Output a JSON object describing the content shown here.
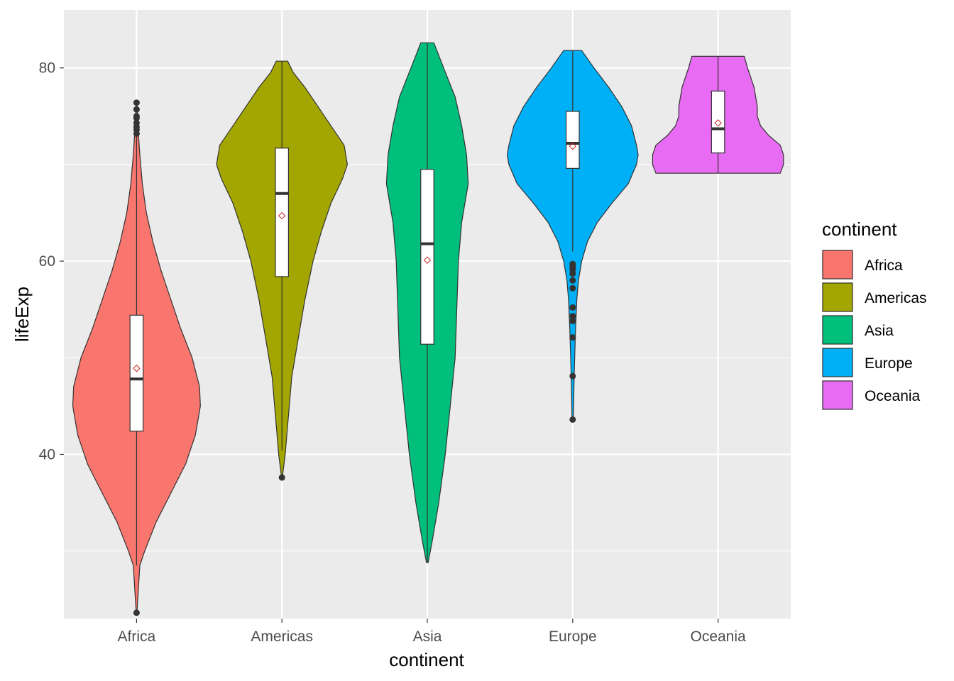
{
  "chart_data": {
    "type": "violin",
    "title": "",
    "xlabel": "continent",
    "ylabel": "lifeExp",
    "ylim": [
      23,
      86
    ],
    "yticks": [
      40,
      60,
      80
    ],
    "grid": true,
    "legend": {
      "title": "continent",
      "placement": "right"
    },
    "categories": [
      "Africa",
      "Americas",
      "Asia",
      "Europe",
      "Oceania"
    ],
    "colors": [
      "#F8766D",
      "#A3A500",
      "#00BF7D",
      "#00B0F6",
      "#E76BF3"
    ],
    "box": [
      {
        "q1": 42.4,
        "median": 47.8,
        "q3": 54.4,
        "mean": 48.9,
        "whisker_low": 28.5,
        "whisker_high": 73.0,
        "outliers": [
          73.2,
          73.6,
          73.9,
          74.3,
          74.8,
          75.0,
          75.7,
          76.4,
          23.6
        ]
      },
      {
        "q1": 58.4,
        "median": 67.0,
        "q3": 71.7,
        "mean": 64.7,
        "whisker_low": 40.4,
        "whisker_high": 80.7,
        "outliers": [
          37.6
        ]
      },
      {
        "q1": 51.4,
        "median": 61.8,
        "q3": 69.5,
        "mean": 60.1,
        "whisker_low": 28.8,
        "whisker_high": 82.6,
        "outliers": []
      },
      {
        "q1": 69.6,
        "median": 72.2,
        "q3": 75.5,
        "mean": 71.9,
        "whisker_low": 61.0,
        "whisker_high": 81.8,
        "outliers": [
          59.1,
          59.3,
          59.5,
          59.7,
          58.7,
          58.0,
          57.2,
          55.2,
          54.3,
          53.8,
          52.1,
          48.1,
          43.6
        ]
      },
      {
        "q1": 71.2,
        "median": 73.7,
        "q3": 77.6,
        "mean": 74.3,
        "whisker_low": 69.1,
        "whisker_high": 81.2,
        "outliers": []
      }
    ],
    "violins": [
      {
        "ymin": 23.6,
        "ymax": 76.4,
        "profile": [
          [
            23.6,
            0.002
          ],
          [
            28.5,
            0.02
          ],
          [
            30,
            0.05
          ],
          [
            33,
            0.12
          ],
          [
            36,
            0.21
          ],
          [
            39,
            0.3
          ],
          [
            42,
            0.36
          ],
          [
            45,
            0.39
          ],
          [
            47,
            0.385
          ],
          [
            50,
            0.34
          ],
          [
            53,
            0.27
          ],
          [
            56,
            0.21
          ],
          [
            59,
            0.15
          ],
          [
            62,
            0.1
          ],
          [
            65,
            0.06
          ],
          [
            68,
            0.035
          ],
          [
            71,
            0.02
          ],
          [
            73,
            0.012
          ],
          [
            75,
            0.006
          ],
          [
            76.4,
            0.002
          ]
        ]
      },
      {
        "ymin": 37.6,
        "ymax": 80.7,
        "profile": [
          [
            37.6,
            0.002
          ],
          [
            40,
            0.02
          ],
          [
            44,
            0.04
          ],
          [
            48,
            0.06
          ],
          [
            52,
            0.1
          ],
          [
            56,
            0.14
          ],
          [
            60,
            0.19
          ],
          [
            63,
            0.24
          ],
          [
            66,
            0.3
          ],
          [
            68.5,
            0.37
          ],
          [
            70,
            0.4
          ],
          [
            72,
            0.38
          ],
          [
            74,
            0.3
          ],
          [
            76,
            0.22
          ],
          [
            78,
            0.14
          ],
          [
            79.5,
            0.07
          ],
          [
            80.7,
            0.035
          ]
        ]
      },
      {
        "ymin": 28.8,
        "ymax": 82.6,
        "profile": [
          [
            28.8,
            0.005
          ],
          [
            31,
            0.03
          ],
          [
            35,
            0.07
          ],
          [
            40,
            0.11
          ],
          [
            45,
            0.14
          ],
          [
            50,
            0.17
          ],
          [
            55,
            0.18
          ],
          [
            60,
            0.19
          ],
          [
            64,
            0.21
          ],
          [
            68,
            0.25
          ],
          [
            71,
            0.24
          ],
          [
            74,
            0.21
          ],
          [
            77,
            0.17
          ],
          [
            80,
            0.1
          ],
          [
            82.6,
            0.04
          ]
        ]
      },
      {
        "ymin": 43.6,
        "ymax": 81.8,
        "profile": [
          [
            43.6,
            0.004
          ],
          [
            47,
            0.008
          ],
          [
            50,
            0.012
          ],
          [
            53,
            0.018
          ],
          [
            56,
            0.025
          ],
          [
            58,
            0.035
          ],
          [
            60,
            0.055
          ],
          [
            62,
            0.09
          ],
          [
            64,
            0.15
          ],
          [
            66,
            0.24
          ],
          [
            68,
            0.34
          ],
          [
            70,
            0.39
          ],
          [
            71,
            0.4
          ],
          [
            72,
            0.39
          ],
          [
            74,
            0.36
          ],
          [
            76,
            0.3
          ],
          [
            78,
            0.22
          ],
          [
            80,
            0.13
          ],
          [
            81.8,
            0.055
          ]
        ]
      },
      {
        "ymin": 69.1,
        "ymax": 81.2,
        "profile": [
          [
            69.1,
            0.38
          ],
          [
            70,
            0.4
          ],
          [
            71,
            0.4
          ],
          [
            72,
            0.38
          ],
          [
            73,
            0.31
          ],
          [
            74,
            0.26
          ],
          [
            75,
            0.24
          ],
          [
            76,
            0.24
          ],
          [
            77,
            0.23
          ],
          [
            78,
            0.22
          ],
          [
            79,
            0.2
          ],
          [
            80,
            0.18
          ],
          [
            81.2,
            0.16
          ]
        ]
      }
    ]
  }
}
